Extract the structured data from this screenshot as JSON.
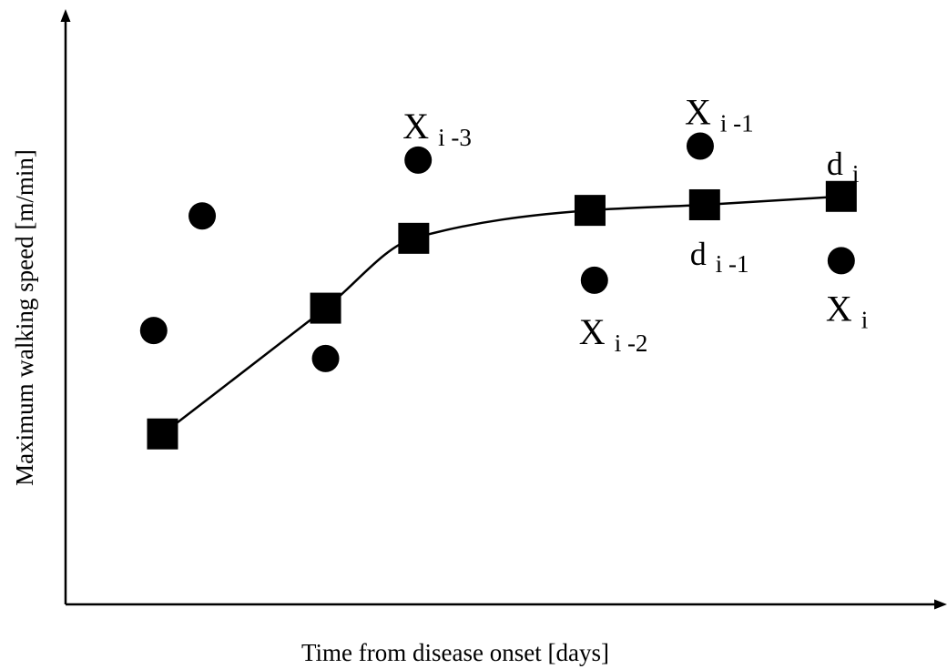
{
  "chart_data": {
    "type": "scatter",
    "title": "",
    "xlabel": "Time from disease onset [days]",
    "ylabel": "Maximum walking speed [m/min]",
    "x_ticks": [],
    "y_ticks": [],
    "grid": false,
    "legend": "none",
    "series": [
      {
        "marker": "circle",
        "points": [
          {
            "x": 1.0,
            "y": 4.9,
            "label_main": "",
            "label_sub": ""
          },
          {
            "x": 1.55,
            "y": 6.95,
            "label_main": "",
            "label_sub": ""
          },
          {
            "x": 2.95,
            "y": 4.4,
            "label_main": "",
            "label_sub": ""
          },
          {
            "x": 4.0,
            "y": 7.95,
            "label_main": "X",
            "label_sub": "i -3"
          },
          {
            "x": 6.0,
            "y": 5.8,
            "label_main": "X",
            "label_sub": "i -2"
          },
          {
            "x": 7.2,
            "y": 8.2,
            "label_main": "X",
            "label_sub": "i -1"
          },
          {
            "x": 8.8,
            "y": 6.15,
            "label_main": "X",
            "label_sub": "i"
          }
        ]
      },
      {
        "marker": "square",
        "curve": "smooth",
        "points": [
          {
            "x": 1.1,
            "y": 3.05,
            "label_main": "",
            "label_sub": ""
          },
          {
            "x": 2.95,
            "y": 5.3,
            "label_main": "",
            "label_sub": ""
          },
          {
            "x": 3.95,
            "y": 6.55,
            "label_main": "",
            "label_sub": ""
          },
          {
            "x": 5.95,
            "y": 7.05,
            "label_main": "",
            "label_sub": ""
          },
          {
            "x": 7.25,
            "y": 7.15,
            "label_main": "d",
            "label_sub": "i -1"
          },
          {
            "x": 8.8,
            "y": 7.3,
            "label_main": "d",
            "label_sub": "i"
          }
        ]
      }
    ],
    "colors": {
      "marker": "#000000",
      "axis": "#000000",
      "line": "#000000"
    }
  }
}
